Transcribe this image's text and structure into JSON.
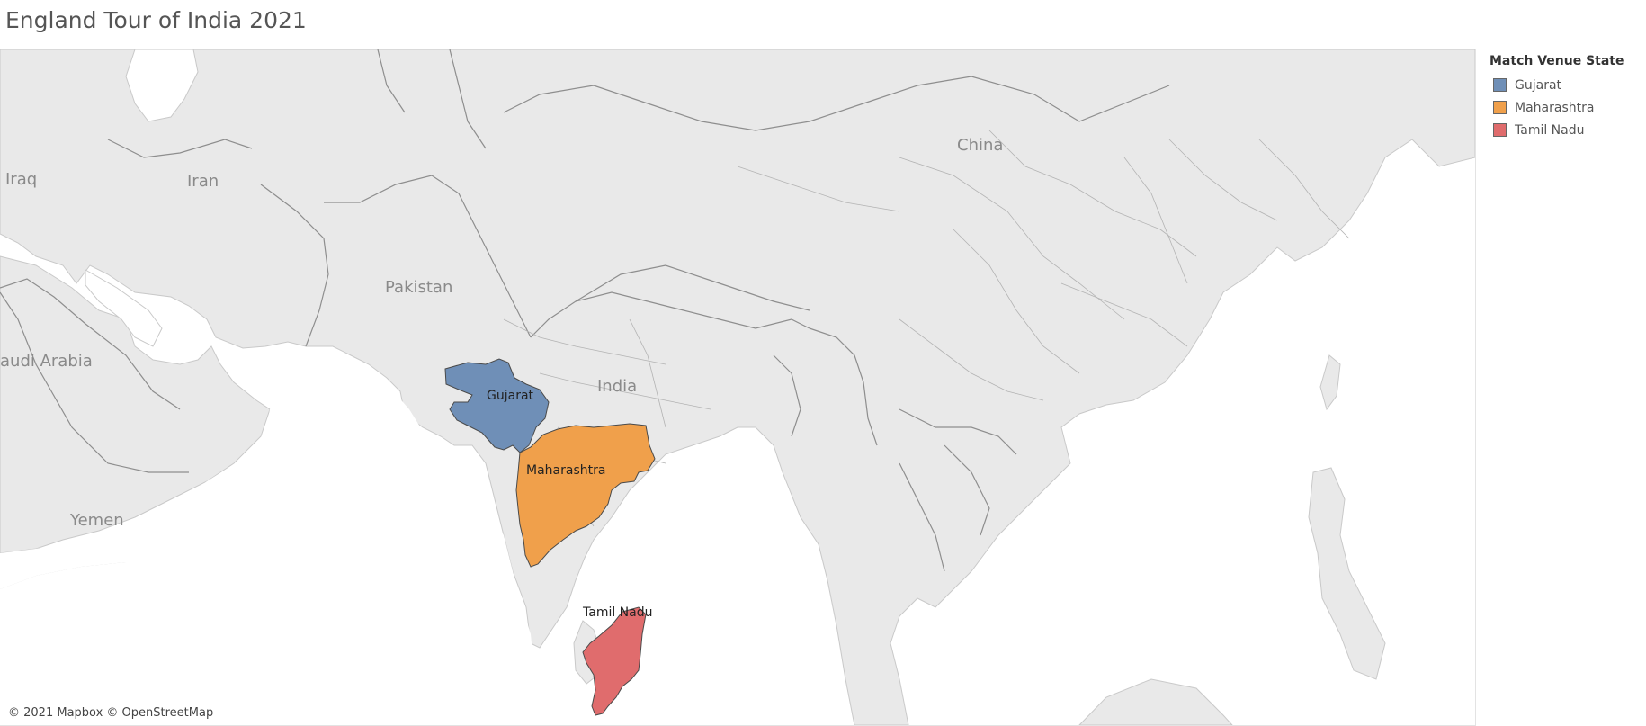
{
  "title": "England Tour of India 2021",
  "legend": {
    "title": "Match Venue State",
    "items": [
      {
        "label": "Gujarat",
        "color": "#6f8fb7"
      },
      {
        "label": "Maharashtra",
        "color": "#f0a04b"
      },
      {
        "label": "Tamil Nadu",
        "color": "#e06c6d"
      }
    ]
  },
  "country_labels": {
    "iraq": "Iraq",
    "iran": "Iran",
    "pakistan": "Pakistan",
    "saudi_arabia": "audi Arabia",
    "yemen": "Yemen",
    "india": "India",
    "china": "China"
  },
  "state_labels": {
    "gujarat": "Gujarat",
    "maharashtra": "Maharashtra",
    "tamil_nadu": "Tamil Nadu"
  },
  "attribution": "© 2021 Mapbox © OpenStreetMap",
  "colors": {
    "land": "#e9e9e9",
    "water": "#ffffff",
    "border": "#9a9a9a"
  }
}
